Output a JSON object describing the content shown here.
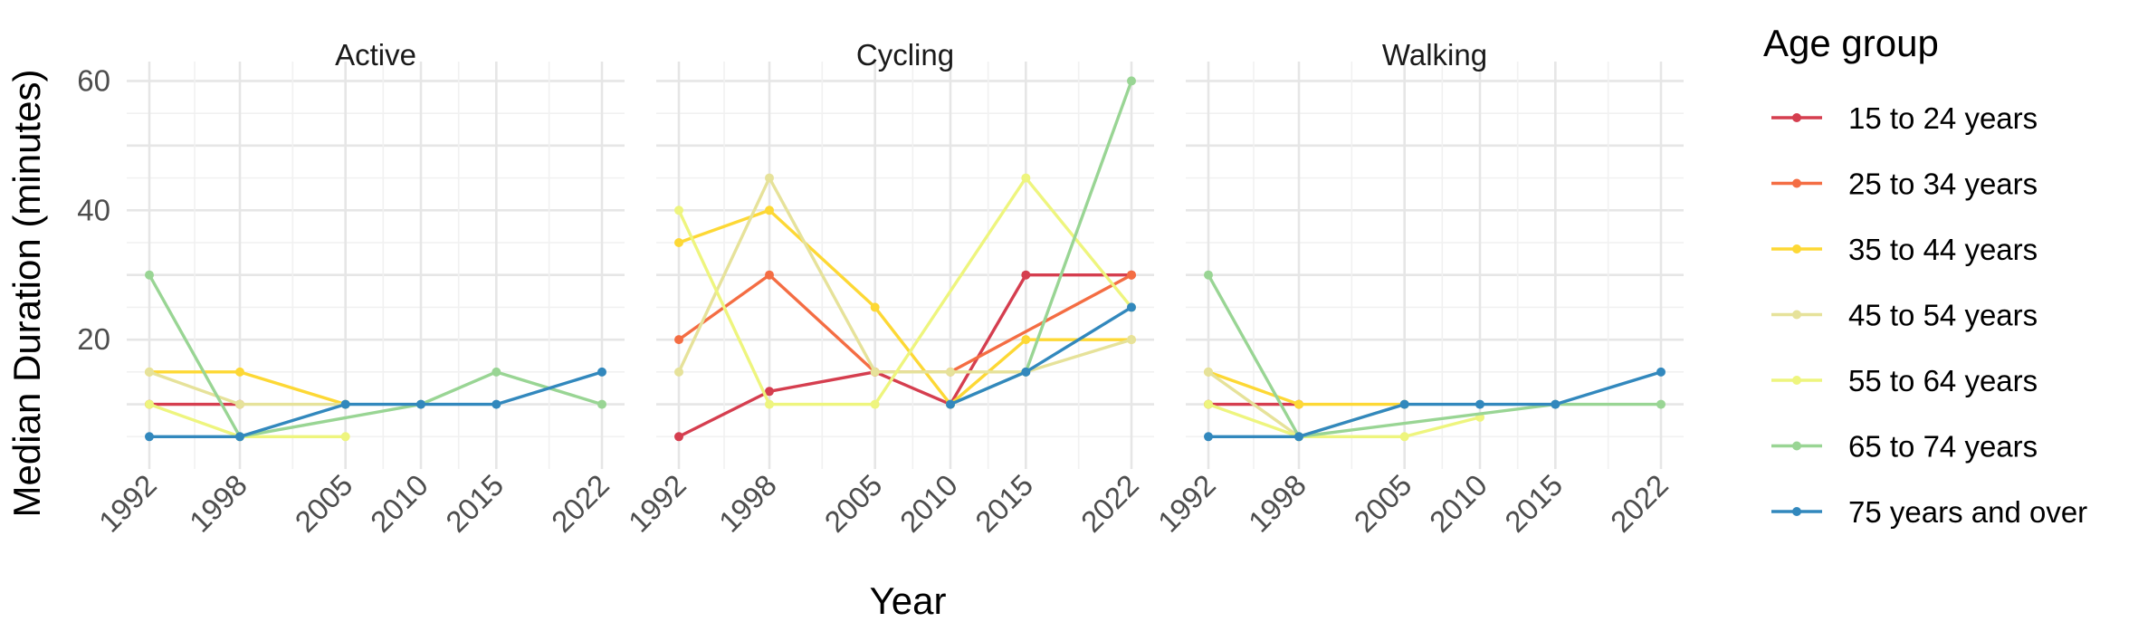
{
  "chart_data": {
    "type": "line",
    "ylabel": "Median Duration (minutes)",
    "xlabel": "Year",
    "x_ticks": [
      "1992",
      "1998",
      "2005",
      "2010",
      "2015",
      "2022"
    ],
    "y_ticks": [
      "20",
      "40",
      "60"
    ],
    "ylim": [
      0,
      63
    ],
    "grid": true,
    "legend": {
      "title": "Age group",
      "placement": "right",
      "entries": [
        "15 to 24 years",
        "25 to 34 years",
        "35 to 44 years",
        "45 to 54 years",
        "55 to 64 years",
        "65 to 74 years",
        "75 years and over"
      ]
    },
    "colors": {
      "15 to 24 years": "#d53e4f",
      "25 to 34 years": "#f46d43",
      "35 to 44 years": "#fdd835",
      "45 to 54 years": "#e6e29a",
      "55 to 64 years": "#eef57e",
      "65 to 74 years": "#99d594",
      "75 years and over": "#3288bd"
    },
    "panels": [
      {
        "facet": "Active",
        "series": [
          {
            "name": "15 to 24 years",
            "x": [
              1992,
              1998
            ],
            "y": [
              10,
              10
            ]
          },
          {
            "name": "35 to 44 years",
            "x": [
              1992,
              1998,
              2005
            ],
            "y": [
              15,
              15,
              10
            ]
          },
          {
            "name": "45 to 54 years",
            "x": [
              1992,
              1998,
              2005
            ],
            "y": [
              15,
              10,
              10
            ]
          },
          {
            "name": "55 to 64 years",
            "x": [
              1992,
              1998,
              2005
            ],
            "y": [
              10,
              5,
              5
            ]
          },
          {
            "name": "65 to 74 years",
            "x": [
              1992,
              1998,
              2010,
              2015,
              2022
            ],
            "y": [
              30,
              5,
              10,
              15,
              10
            ]
          },
          {
            "name": "75 years and over",
            "x": [
              1992,
              1998,
              2005,
              2010,
              2015,
              2022
            ],
            "y": [
              5,
              5,
              10,
              10,
              10,
              15
            ]
          }
        ]
      },
      {
        "facet": "Cycling",
        "series": [
          {
            "name": "15 to 24 years",
            "x": [
              1992,
              1998,
              2005,
              2010,
              2015,
              2022
            ],
            "y": [
              5,
              12,
              15,
              10,
              30,
              30
            ]
          },
          {
            "name": "25 to 34 years",
            "x": [
              1992,
              1998,
              2005,
              2010,
              2022
            ],
            "y": [
              20,
              30,
              15,
              15,
              30
            ]
          },
          {
            "name": "35 to 44 years",
            "x": [
              1992,
              1998,
              2005,
              2010,
              2015,
              2022
            ],
            "y": [
              35,
              40,
              25,
              10,
              20,
              20
            ]
          },
          {
            "name": "45 to 54 years",
            "x": [
              1992,
              1998,
              2005,
              2010,
              2015,
              2022
            ],
            "y": [
              15,
              45,
              15,
              15,
              15,
              20
            ]
          },
          {
            "name": "55 to 64 years",
            "x": [
              1992,
              1998,
              2005,
              2015,
              2022
            ],
            "y": [
              40,
              10,
              10,
              45,
              25
            ]
          },
          {
            "name": "65 to 74 years",
            "x": [
              2010,
              2015,
              2022
            ],
            "y": [
              10,
              15,
              60
            ]
          },
          {
            "name": "75 years and over",
            "x": [
              2010,
              2015,
              2022
            ],
            "y": [
              10,
              15,
              25
            ]
          }
        ]
      },
      {
        "facet": "Walking",
        "series": [
          {
            "name": "15 to 24 years",
            "x": [
              1992,
              1998
            ],
            "y": [
              10,
              10
            ]
          },
          {
            "name": "35 to 44 years",
            "x": [
              1992,
              1998,
              2005
            ],
            "y": [
              15,
              10,
              10
            ]
          },
          {
            "name": "45 to 54 years",
            "x": [
              1992,
              1998,
              2005
            ],
            "y": [
              15,
              5,
              10
            ]
          },
          {
            "name": "55 to 64 years",
            "x": [
              1992,
              1998,
              2005,
              2010
            ],
            "y": [
              10,
              5,
              5,
              8
            ]
          },
          {
            "name": "65 to 74 years",
            "x": [
              1992,
              1998,
              2015,
              2022
            ],
            "y": [
              30,
              5,
              10,
              10
            ]
          },
          {
            "name": "75 years and over",
            "x": [
              1992,
              1998,
              2005,
              2010,
              2015,
              2022
            ],
            "y": [
              5,
              5,
              10,
              10,
              10,
              15
            ]
          }
        ]
      }
    ]
  }
}
